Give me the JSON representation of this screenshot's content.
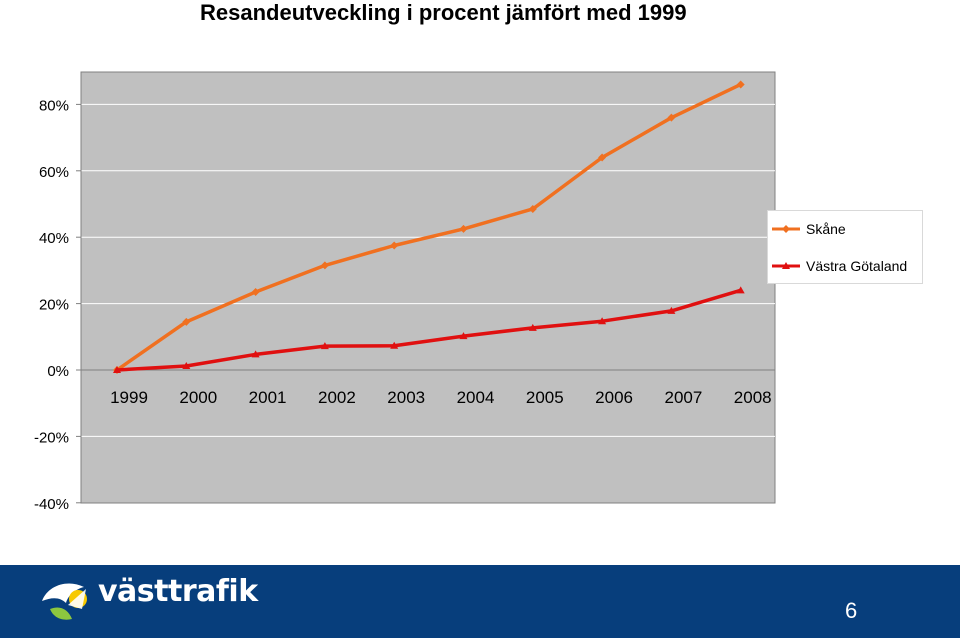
{
  "slide": {
    "title": "Resandeutveckling i procent jämfört med 1999",
    "page_number": "6",
    "logo_text": "västtrafik"
  },
  "colors": {
    "plot_background": "#c0c0c0",
    "series_skane": "#f07020",
    "series_vastra": "#e01010",
    "footer": "#073e7c"
  },
  "chart_data": {
    "type": "line",
    "title": "Resandeutveckling i procent jämfört med 1999",
    "categories": [
      "1999",
      "2000",
      "2001",
      "2002",
      "2003",
      "2004",
      "2005",
      "2006",
      "2007",
      "2008"
    ],
    "y_ticks": [
      "80%",
      "60%",
      "40%",
      "20%",
      "0%",
      "-20%",
      "-40%"
    ],
    "ylim": [
      -40,
      86
    ],
    "y_unit": "%",
    "grid": "horizontal",
    "legend_position": "right",
    "series": [
      {
        "name": "Skåne",
        "color": "#f07020",
        "marker": "diamond",
        "values": [
          0,
          14.5,
          23.5,
          31.5,
          37.5,
          42.5,
          48.5,
          64,
          76,
          86
        ]
      },
      {
        "name": "Västra Götaland",
        "color": "#e01010",
        "marker": "triangle",
        "values": [
          0,
          1.2,
          4.7,
          7.2,
          7.3,
          10.2,
          12.7,
          14.7,
          17.8,
          24
        ]
      }
    ]
  }
}
